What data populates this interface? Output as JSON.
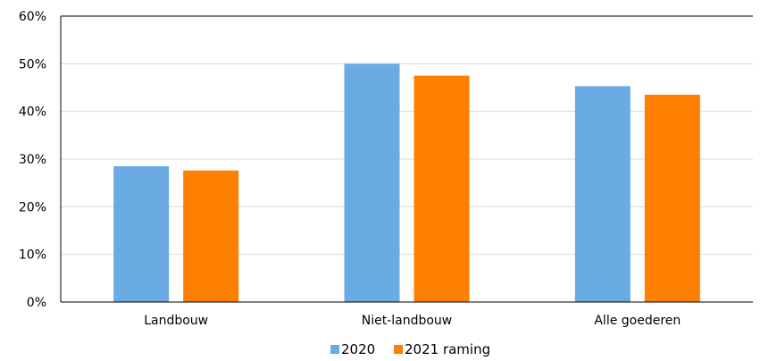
{
  "chart_data": {
    "type": "bar",
    "title": "",
    "xlabel": "",
    "ylabel": "",
    "categories": [
      "Landbouw",
      "Niet-landbouw",
      "Alle goederen"
    ],
    "series": [
      {
        "name": "2020",
        "values": [
          28.5,
          50.0,
          45.3
        ],
        "color": "#6AABE3"
      },
      {
        "name": "2021 raming",
        "values": [
          27.6,
          47.5,
          43.5
        ],
        "color": "#FF7F00"
      }
    ],
    "ylim": [
      0,
      60
    ],
    "yticks": [
      0,
      10,
      20,
      30,
      40,
      50,
      60
    ],
    "ytick_labels": [
      "0%",
      "10%",
      "20%",
      "30%",
      "40%",
      "50%",
      "60%"
    ],
    "grid": true,
    "legend_position": "bottom"
  }
}
